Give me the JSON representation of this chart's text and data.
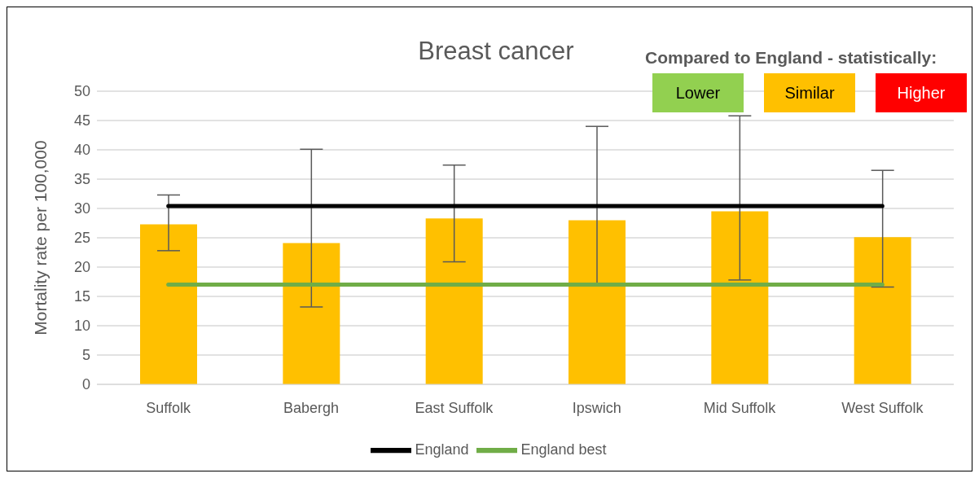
{
  "chart_data": {
    "type": "bar",
    "title": "Breast cancer",
    "ylabel": "Mortality rate per 100,000",
    "categories": [
      "Suffolk",
      "Babergh",
      "East Suffolk",
      "Ipswich",
      "Mid Suffolk",
      "West Suffolk"
    ],
    "series": [
      {
        "color": "#ffc000",
        "values": [
          27.3,
          24.1,
          28.3,
          28.0,
          29.5,
          25.1
        ],
        "errors": [
          [
            22.8,
            32.3
          ],
          [
            13.2,
            40.1
          ],
          [
            20.9,
            37.4
          ],
          [
            17.2,
            44.0
          ],
          [
            17.8,
            45.8
          ],
          [
            16.6,
            36.5
          ]
        ]
      },
      {
        "type": "line",
        "name": "England",
        "color": "#000000",
        "values": [
          30.4,
          30.4,
          30.4,
          30.4,
          30.4,
          30.4
        ]
      },
      {
        "type": "line",
        "name": "England best",
        "color": "#70ad47",
        "values": [
          17.0,
          17.0,
          17.0,
          17.0,
          17.0,
          17.0
        ]
      }
    ],
    "ylim": [
      0,
      50
    ],
    "yticks": [
      0,
      5,
      10,
      15,
      20,
      25,
      30,
      35,
      40,
      45,
      50
    ],
    "grid": "y",
    "legend": "bottom",
    "marker": "none",
    "line_style": "solid",
    "annotations": [
      "Compared to England - statistically:",
      "Lower",
      "Similar",
      "Higher"
    ]
  }
}
